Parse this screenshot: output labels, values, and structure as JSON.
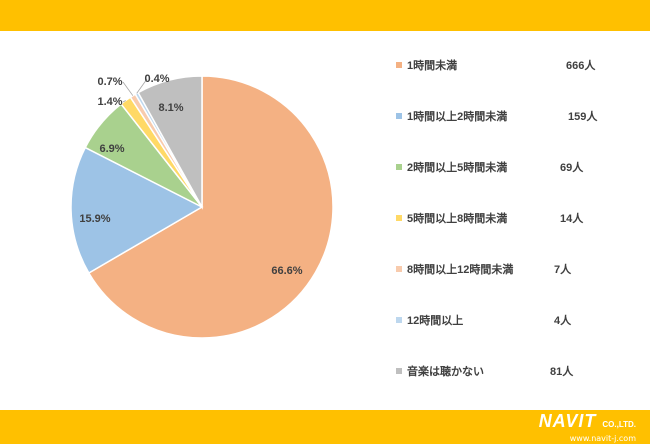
{
  "chart_data": {
    "type": "pie",
    "categories": [
      "1時間未満",
      "1時間以上2時間未満",
      "2時間以上5時間未満",
      "5時間以上8時間未満",
      "8時間以上12時間未満",
      "12時間以上",
      "音楽は聴かない"
    ],
    "counts": [
      "666人",
      "159人",
      "69人",
      "14人",
      "7人",
      "4人",
      "81人"
    ],
    "values": [
      666,
      159,
      69,
      14,
      7,
      4,
      81
    ],
    "percent_labels": [
      "66.6%",
      "15.9%",
      "6.9%",
      "1.4%",
      "0.7%",
      "0.4%",
      "8.1%"
    ],
    "colors": [
      "#f4b183",
      "#9dc3e6",
      "#a9d18e",
      "#ffd966",
      "#f8cbad",
      "#bdd7ee",
      "#bfbfbf"
    ],
    "legend_position": "right"
  },
  "branding": {
    "logo_text": "NAVIT",
    "logo_suffix": "CO.,LTD.",
    "url": "www.navit-j.com"
  }
}
